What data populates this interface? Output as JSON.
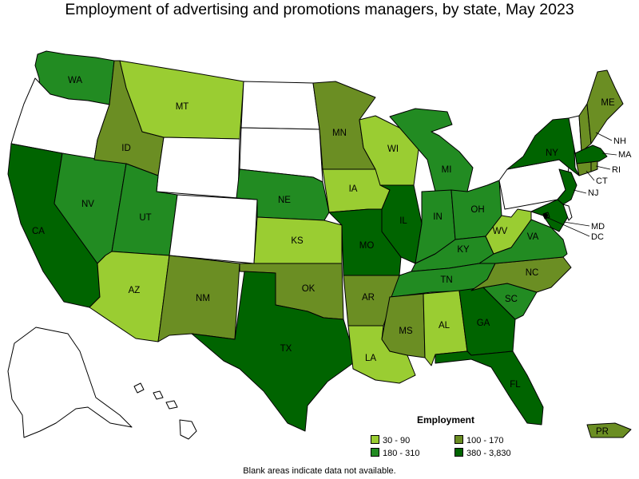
{
  "title": "Employment of advertising and promotions managers, by state, May 2023",
  "legend": {
    "title": "Employment",
    "items": [
      {
        "label": "30 - 90",
        "color": "#9acd32"
      },
      {
        "label": "100 - 170",
        "color": "#6b8e23"
      },
      {
        "label": "180 - 310",
        "color": "#228b22"
      },
      {
        "label": "380 - 3,830",
        "color": "#006400"
      }
    ]
  },
  "note": "Blank areas indicate data not available.",
  "colors": {
    "no_data": "#ffffff",
    "border": "#000000"
  },
  "states": {
    "WA": "180 - 310",
    "OR": "none",
    "CA": "380 - 3,830",
    "NV": "180 - 310",
    "ID": "100 - 170",
    "MT": "30 - 90",
    "WY": "none",
    "UT": "180 - 310",
    "AZ": "30 - 90",
    "CO": "none",
    "NM": "100 - 170",
    "ND": "none",
    "SD": "none",
    "NE": "180 - 310",
    "KS": "30 - 90",
    "OK": "100 - 170",
    "TX": "380 - 3,830",
    "MN": "100 - 170",
    "IA": "30 - 90",
    "MO": "380 - 3,830",
    "AR": "100 - 170",
    "LA": "30 - 90",
    "WI": "30 - 90",
    "IL": "380 - 3,830",
    "MI": "180 - 310",
    "IN": "180 - 310",
    "OH": "180 - 310",
    "KY": "180 - 310",
    "TN": "180 - 310",
    "MS": "100 - 170",
    "AL": "30 - 90",
    "GA": "380 - 3,830",
    "FL": "380 - 3,830",
    "SC": "180 - 310",
    "NC": "100 - 170",
    "VA": "180 - 310",
    "WV": "30 - 90",
    "PA": "none",
    "NY": "380 - 3,830",
    "NJ": "380 - 3,830",
    "DE": "none",
    "MD": "380 - 3,830",
    "DC": "380 - 3,830",
    "CT": "100 - 170",
    "RI": "100 - 170",
    "MA": "380 - 3,830",
    "VT": "none",
    "NH": "100 - 170",
    "ME": "100 - 170",
    "AK": "none",
    "HI": "none",
    "PR": "100 - 170"
  }
}
